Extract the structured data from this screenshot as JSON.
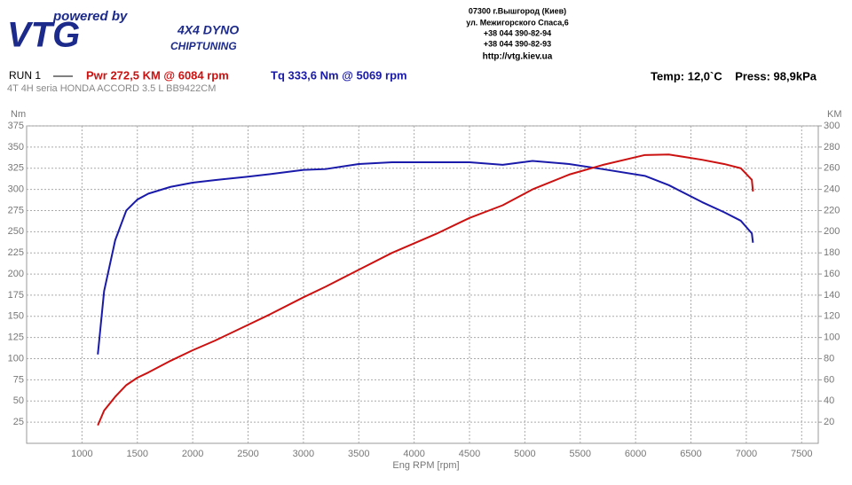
{
  "header": {
    "brand_tag": "powered by",
    "brand": "VTG",
    "product": "4X4 DYNO",
    "product_sub": "CHIPTUNING",
    "address": [
      "07300 г.Вышгород (Киев)",
      "ул. Межигорского Спаса,6",
      "+38 044 390-82-94",
      "+38 044 390-82-93",
      "http://vtg.kiev.ua"
    ]
  },
  "chart_data": {
    "type": "line",
    "run": "RUN 1",
    "power_note": "Pwr  272,5 KM @ 6084 rpm",
    "torque_note": "Tq 333,6 Nm @ 5069 rpm",
    "conditions": "Temp: 12,0`C    Press: 98,9kPa",
    "subtitle": "4T 4H  seria HONDA ACCORD 3.5 L BB9422CM",
    "ylabel": "Nm",
    "y2label": "KM",
    "xlabel": "Eng RPM [rpm]",
    "x": [
      1143,
      1200,
      1300,
      1400,
      1500,
      1600,
      1800,
      2000,
      2200,
      2500,
      2700,
      3000,
      3200,
      3500,
      3800,
      4000,
      4200,
      4500,
      4800,
      5069,
      5400,
      5700,
      6084,
      6300,
      6600,
      6800,
      6950,
      7050,
      7060
    ],
    "series": [
      {
        "color": "#1a1aaa",
        "axis": "y",
        "values": [
          105,
          180,
          240,
          275,
          288,
          295,
          303,
          308,
          311,
          315,
          318,
          323,
          324,
          330,
          332,
          332,
          332,
          332,
          329,
          333.6,
          330,
          324,
          316,
          305,
          285,
          273,
          263,
          248,
          237
        ]
      },
      {
        "color": "#cc1111",
        "axis": "y2",
        "values": [
          17,
          31,
          44,
          55,
          62,
          67,
          78,
          88,
          97,
          112,
          122,
          138,
          148,
          164,
          180,
          189,
          198,
          213,
          225,
          240,
          254,
          263,
          272.5,
          273,
          268,
          264,
          260,
          249,
          238
        ]
      }
    ],
    "xlim": [
      500,
      7650
    ],
    "xticks": [
      1000,
      1500,
      2000,
      2500,
      3000,
      3500,
      4000,
      4500,
      5000,
      5500,
      6000,
      6500,
      7000,
      7500
    ],
    "ylim": [
      0,
      375
    ],
    "yticks": [
      25,
      50,
      75,
      100,
      125,
      150,
      175,
      200,
      225,
      250,
      275,
      300,
      325,
      350,
      375
    ],
    "y2lim": [
      0,
      300
    ],
    "y2ticks": [
      20,
      40,
      60,
      80,
      100,
      120,
      140,
      160,
      180,
      200,
      220,
      240,
      260,
      280,
      300
    ],
    "grid": true
  }
}
